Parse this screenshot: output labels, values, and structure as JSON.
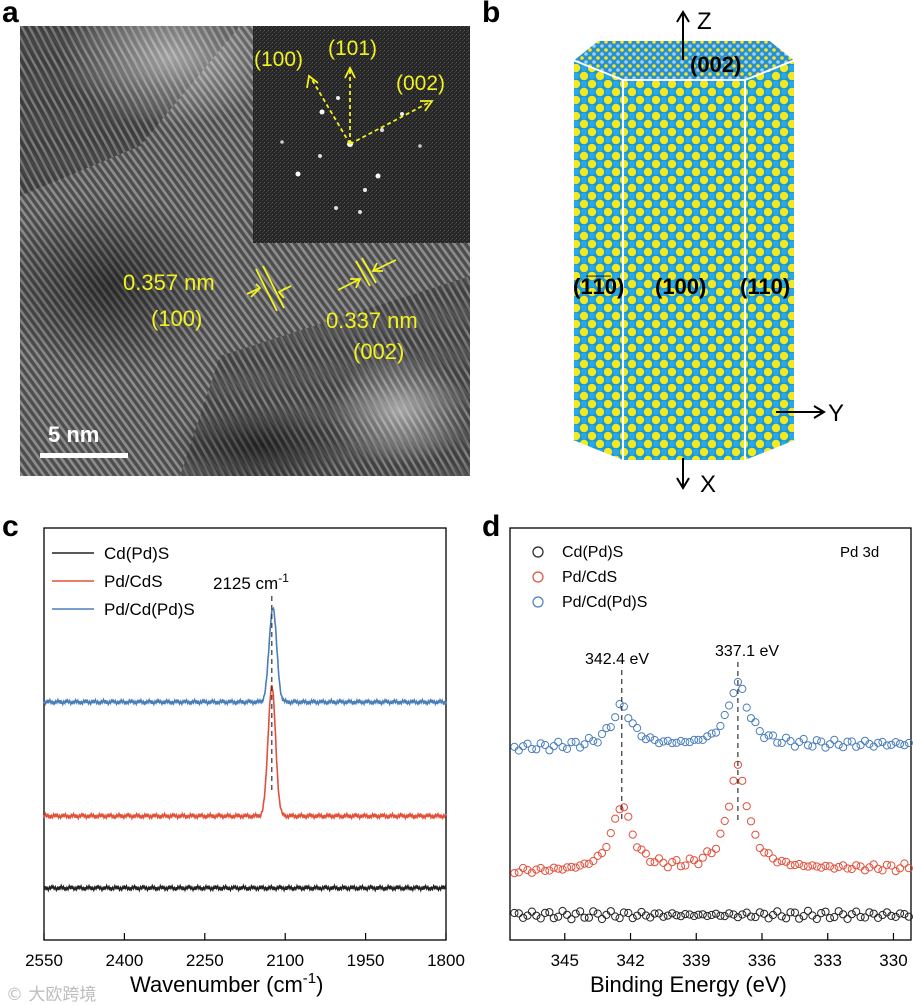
{
  "panels": {
    "a": {
      "label": "a",
      "scale_bar": "5 nm",
      "fft": {
        "labels": [
          "(100)",
          "(101)",
          "(002)"
        ]
      },
      "spacing1": {
        "value": "0.357 nm",
        "plane": "(100)"
      },
      "spacing2": {
        "value": "0.337 nm",
        "plane": "(002)"
      },
      "annotation_color": "#f2f21f"
    },
    "b": {
      "label": "b",
      "axes": {
        "z": "Z",
        "y": "Y",
        "x": "X"
      },
      "facets": {
        "top": "(002)",
        "left": "(1̅1̅0)",
        "middle": "(100)",
        "right": "(110)"
      },
      "atom_colors": {
        "cd": "#1b98d4",
        "s": "#f4e81f"
      }
    },
    "c": {
      "label": "c",
      "peak_label": "2125 cm",
      "peak_sup": "-1"
    },
    "d": {
      "label": "d",
      "title": "Pd 3d",
      "peak1_label": "342.4 eV",
      "peak2_label": "337.1 eV"
    }
  },
  "watermark": "© 大欧跨境",
  "chart_data": [
    {
      "id": "c",
      "type": "line",
      "title": "",
      "xlabel": "Wavenumber (cm⁻¹)",
      "ylabel": "",
      "xlim": [
        2550,
        1800
      ],
      "x_ticks": [
        2550,
        2400,
        2250,
        2100,
        1950,
        1800
      ],
      "annotation": {
        "x": 2125,
        "text": "2125 cm⁻¹"
      },
      "series": [
        {
          "name": "Cd(Pd)S",
          "color": "#222222",
          "baseline": 0.0,
          "peak_center": 2125,
          "peak_height": 0.0,
          "peak_width": 8
        },
        {
          "name": "Pd/CdS",
          "color": "#e2503c",
          "baseline": 1.0,
          "peak_center": 2125,
          "peak_height": 1.18,
          "peak_width": 7
        },
        {
          "name": "Pd/Cd(Pd)S",
          "color": "#4a7ebb",
          "baseline": 2.2,
          "peak_center": 2123,
          "peak_height": 0.86,
          "peak_width": 7
        }
      ]
    },
    {
      "id": "d",
      "type": "scatter",
      "title": "Pd 3d",
      "xlabel": "Binding Energy (eV)",
      "ylabel": "",
      "xlim": [
        347.5,
        329.2
      ],
      "x_ticks": [
        345,
        342,
        339,
        336,
        333,
        330
      ],
      "annotations": [
        {
          "x": 342.4,
          "text": "342.4 eV"
        },
        {
          "x": 337.1,
          "text": "337.1 eV"
        }
      ],
      "series": [
        {
          "name": "Cd(Pd)S",
          "color": "#222222",
          "baseline": 0.0,
          "peaks": []
        },
        {
          "name": "Pd/CdS",
          "color": "#e2503c",
          "baseline": 1.0,
          "peaks": [
            {
              "x": 342.4,
              "height": 1.0
            },
            {
              "x": 337.1,
              "height": 1.55
            }
          ]
        },
        {
          "name": "Pd/Cd(Pd)S",
          "color": "#4a7ebb",
          "baseline": 2.25,
          "peaks": [
            {
              "x": 342.4,
              "height": 0.62
            },
            {
              "x": 337.1,
              "height": 0.95
            }
          ]
        }
      ]
    }
  ]
}
